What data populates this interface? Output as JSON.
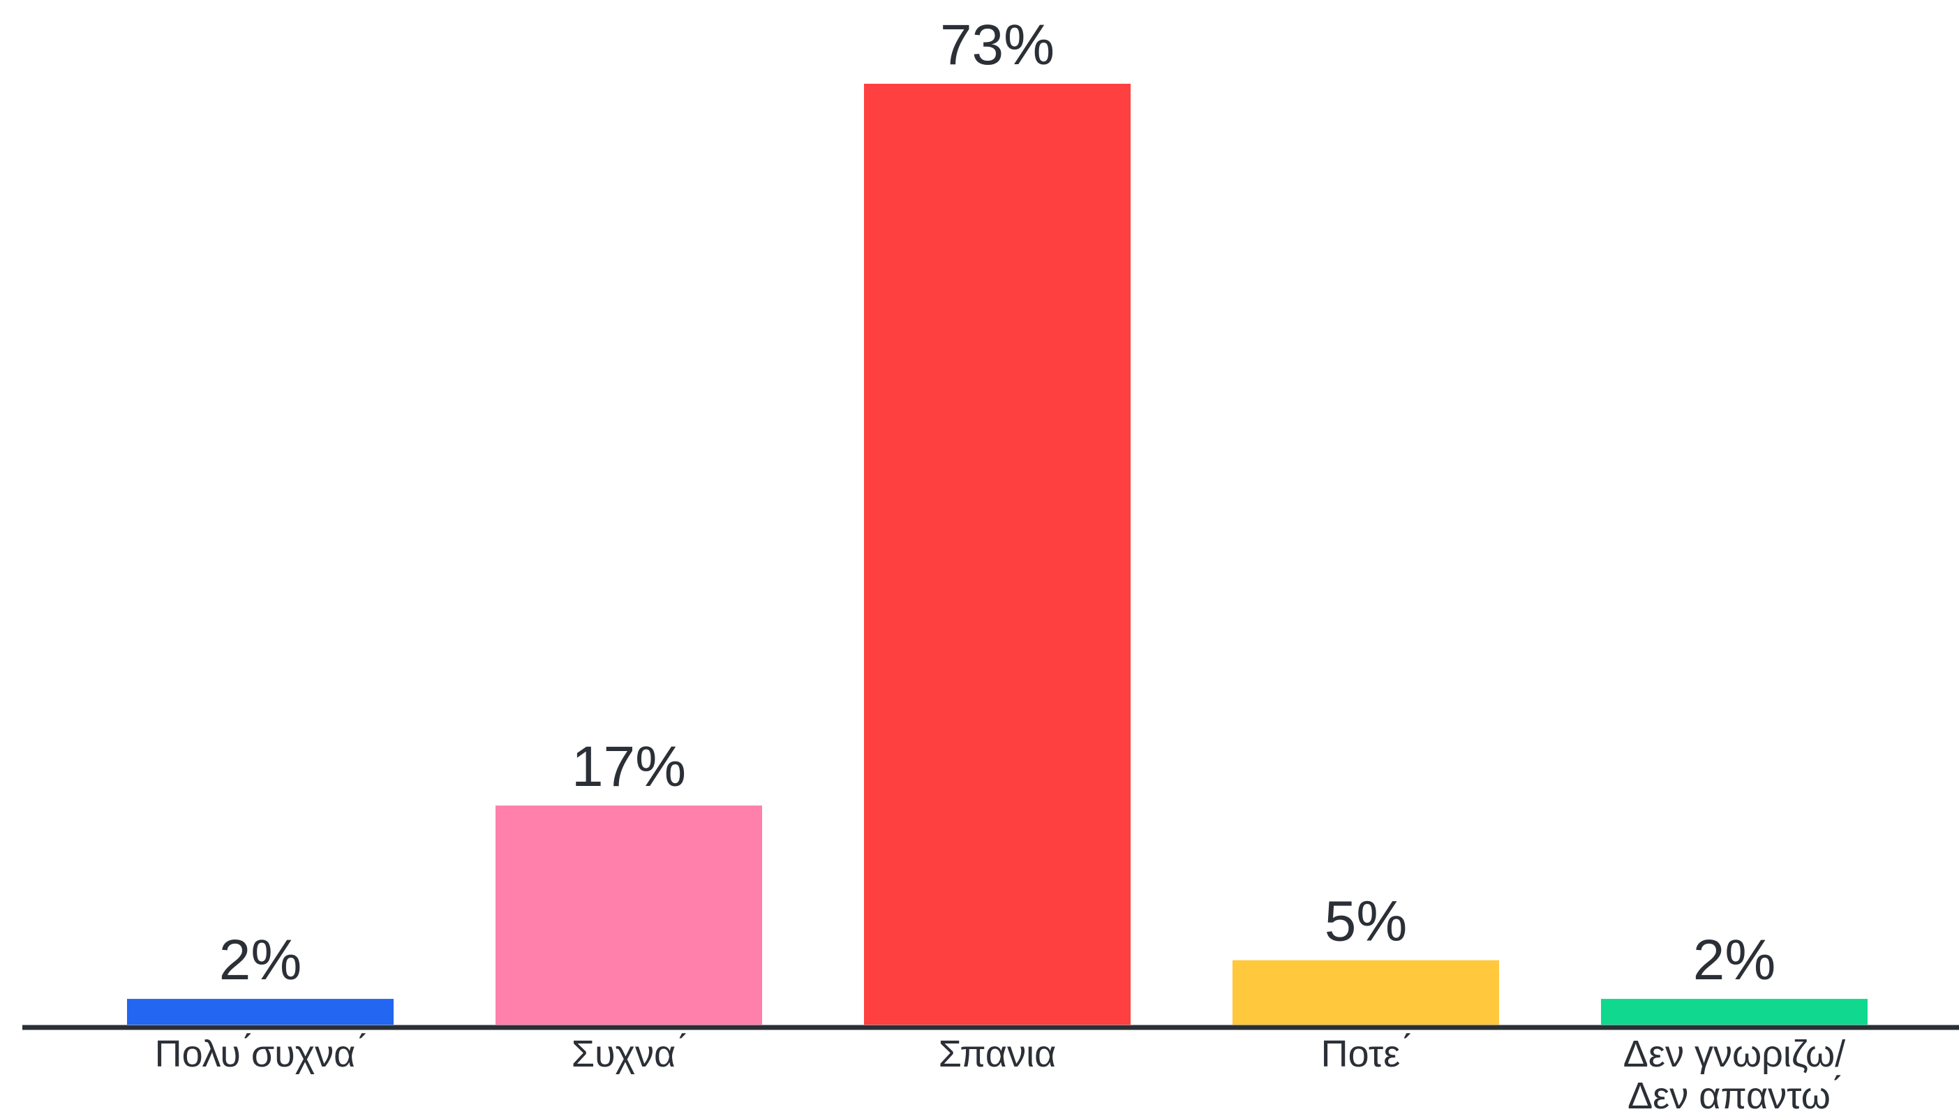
{
  "chart_data": {
    "type": "bar",
    "categories": [
      [
        "Πολυ ́συχνα ́"
      ],
      [
        "Συχνα ́"
      ],
      [
        "Σπανια"
      ],
      [
        "Ποτε ́"
      ],
      [
        "Δεν γνωριζω/",
        "Δεν απαντω ́"
      ]
    ],
    "values": [
      2,
      17,
      73,
      5,
      2
    ],
    "value_labels": [
      "2%",
      "17%",
      "73%",
      "5%",
      "2%"
    ],
    "colors": [
      "#2266f2",
      "#ff80aa",
      "#ff4040",
      "#ffc83d",
      "#10d98f"
    ],
    "title": "",
    "xlabel": "",
    "ylabel": "",
    "ylim": [
      0,
      73
    ],
    "grid": false,
    "legend": "none",
    "axis_color": "#2b2f36"
  }
}
